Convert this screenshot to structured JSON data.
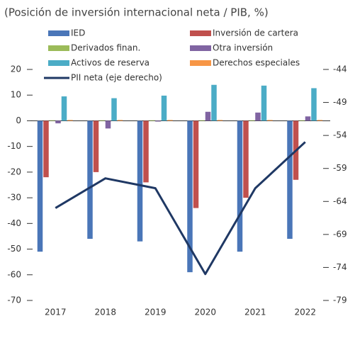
{
  "chart_data": {
    "type": "bar",
    "title": "(Posición de inversión internacional neta / PIB, %)",
    "categories": [
      "2017",
      "2018",
      "2019",
      "2020",
      "2021",
      "2022"
    ],
    "series": [
      {
        "name": "IED",
        "color": "#4a76b8",
        "values": [
          -51,
          -46,
          -47,
          -59,
          -51,
          -46
        ]
      },
      {
        "name": "Inversión de cartera",
        "color": "#c0504d",
        "values": [
          -22,
          -20,
          -24,
          -34,
          -30,
          -23
        ]
      },
      {
        "name": "Derivados finan.",
        "color": "#9bbb59",
        "values": [
          0.2,
          0.2,
          0.2,
          0.2,
          0.2,
          0.2
        ]
      },
      {
        "name": "Otra inversión",
        "color": "#8064a2",
        "values": [
          -1,
          -3,
          -0.3,
          3.5,
          3.2,
          1.7
        ]
      },
      {
        "name": "Activos de reserva",
        "color": "#4bacc6",
        "values": [
          9.5,
          8.8,
          9.8,
          14,
          13.7,
          12.7
        ]
      },
      {
        "name": "Derechos especiales",
        "color": "#f79646",
        "values": [
          0.3,
          0.3,
          0.3,
          0.3,
          0.3,
          0.3
        ]
      },
      {
        "name": "PII neta (eje derecho)",
        "color": "#1f3864",
        "type": "line",
        "axis": "y2",
        "values": [
          -65,
          -60.5,
          -62,
          -75,
          -62,
          -55
        ]
      }
    ],
    "ylim": [
      -70,
      20
    ],
    "yticks": [
      20,
      10,
      0,
      -10,
      -20,
      -30,
      -40,
      -50,
      -60,
      -70
    ],
    "y2lim": [
      -79,
      -44
    ],
    "y2ticks": [
      -44,
      -49,
      -54,
      -59,
      -64,
      -69,
      -74,
      -79
    ],
    "legend": "top"
  }
}
